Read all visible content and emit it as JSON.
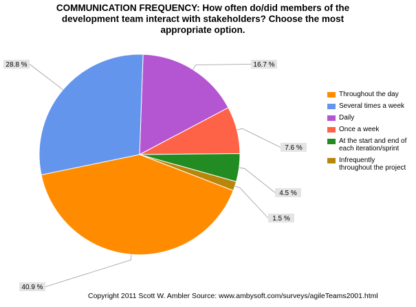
{
  "chart_data": {
    "type": "pie",
    "title_lines": [
      "COMMUNICATION FREQUENCY: How often do/did members of the",
      "development team interact with stakeholders?  Choose the most",
      "appropriate option."
    ],
    "slices": [
      {
        "name": "Throughout the day",
        "legend_lines": [
          "Throughout the day"
        ],
        "value": 40.9,
        "label": "40.9 %",
        "color": "#FF8C00"
      },
      {
        "name": "Several times a week",
        "legend_lines": [
          "Several times a week"
        ],
        "value": 28.8,
        "label": "28.8 %",
        "color": "#6495ED"
      },
      {
        "name": "Daily",
        "legend_lines": [
          "Daily"
        ],
        "value": 16.7,
        "label": "16.7 %",
        "color": "#B455D2"
      },
      {
        "name": "Once a week",
        "legend_lines": [
          "Once a week"
        ],
        "value": 7.6,
        "label": "7.6 %",
        "color": "#FF6347"
      },
      {
        "name": "At the start and end of each iteration/sprint",
        "legend_lines": [
          "At the start and end of",
          "each iteration/sprint"
        ],
        "value": 4.5,
        "label": "4.5 %",
        "color": "#228B22"
      },
      {
        "name": "Infrequently throughout the project",
        "legend_lines": [
          "Infrequently",
          "throughout the project"
        ],
        "value": 1.5,
        "label": "1.5 %",
        "color": "#B8860B"
      }
    ],
    "legend_position": "right"
  },
  "footer": {
    "copyright": "Copyright 2011 Scott W. Ambler   Source: www.ambysoft.com/surveys/agileTeams2001.html"
  }
}
